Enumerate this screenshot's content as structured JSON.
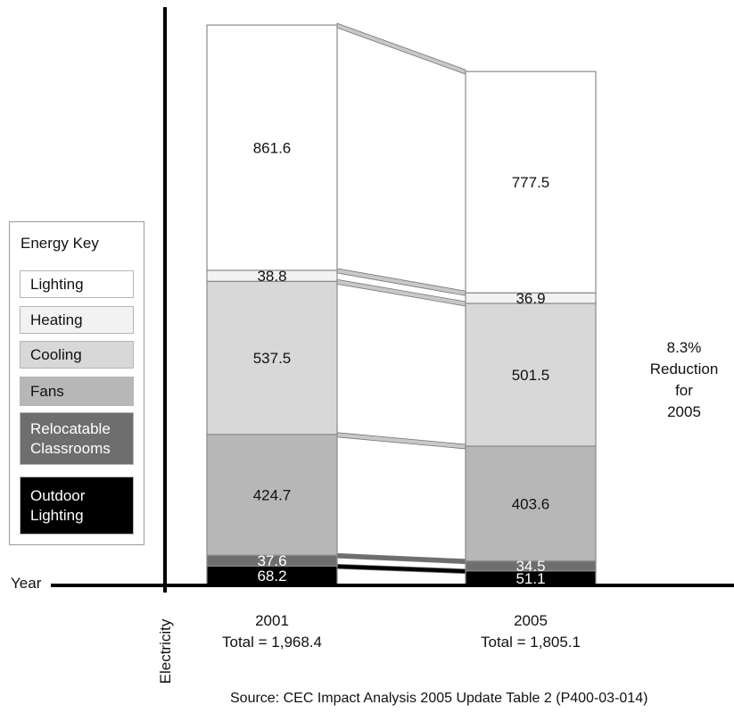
{
  "chart_data": {
    "type": "bar",
    "stacked": true,
    "categories": [
      "2001",
      "2005"
    ],
    "category_totals": [
      "Total = 1,968.4",
      "Total = 1,805.1"
    ],
    "series": [
      {
        "name": "Outdoor Lighting",
        "values": [
          68.2,
          51.1
        ],
        "labels": [
          "68.2",
          "51.1"
        ],
        "color": "#000000",
        "text_color": "#ffffff"
      },
      {
        "name": "Relocatable Classrooms",
        "values": [
          37.6,
          34.5
        ],
        "labels": [
          "37.6",
          "34.5"
        ],
        "color": "#6e6e6e",
        "text_color": "#ffffff"
      },
      {
        "name": "Fans",
        "values": [
          424.7,
          403.6
        ],
        "labels": [
          "424.7",
          "403.6"
        ],
        "color": "#b7b7b7",
        "text_color": "#111111"
      },
      {
        "name": "Cooling",
        "values": [
          537.5,
          501.5
        ],
        "labels": [
          "537.5",
          "501.5"
        ],
        "color": "#d8d8d8",
        "text_color": "#111111"
      },
      {
        "name": "Heating",
        "values": [
          38.8,
          36.9
        ],
        "labels": [
          "38.8",
          "36.9"
        ],
        "color": "#f2f2f2",
        "text_color": "#111111"
      },
      {
        "name": "Lighting",
        "values": [
          861.6,
          777.5
        ],
        "labels": [
          "861.6",
          "777.5"
        ],
        "color": "#ffffff",
        "text_color": "#111111"
      }
    ],
    "xlabel": "Year",
    "ylabel": "Electricity",
    "annotation": [
      "8.3%",
      "Reduction",
      "for",
      "2005"
    ],
    "source": "Source: CEC Impact Analysis 2005 Update Table 2 (P400-03-014)",
    "grid": false,
    "legend_position": "left"
  },
  "legend": {
    "title": "Energy Key",
    "items": [
      {
        "label": "Lighting",
        "color": "#ffffff",
        "text_color": "#111111"
      },
      {
        "label": "Heating",
        "color": "#f2f2f2",
        "text_color": "#111111"
      },
      {
        "label": "Cooling",
        "color": "#d8d8d8",
        "text_color": "#111111"
      },
      {
        "label": "Fans",
        "color": "#b7b7b7",
        "text_color": "#111111"
      },
      {
        "label": "Relocatable Classrooms",
        "color": "#6e6e6e",
        "text_color": "#ffffff"
      },
      {
        "label": "Outdoor Lighting",
        "color": "#000000",
        "text_color": "#ffffff"
      }
    ]
  }
}
